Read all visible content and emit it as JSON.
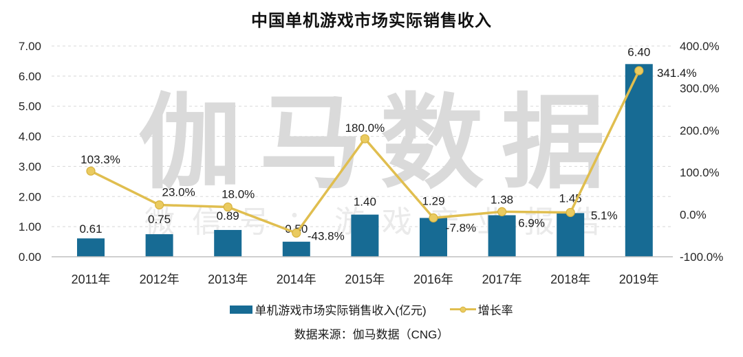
{
  "chart_data": {
    "type": "combo",
    "title": "中国单机游戏市场实际销售收入",
    "categories": [
      "2011年",
      "2012年",
      "2013年",
      "2014年",
      "2015年",
      "2016年",
      "2017年",
      "2018年",
      "2019年"
    ],
    "series": [
      {
        "name": "单机游戏市场实际销售收入(亿元)",
        "type": "bar",
        "axis": "left",
        "color": "#176b94",
        "values": [
          0.61,
          0.75,
          0.89,
          0.5,
          1.4,
          1.29,
          1.38,
          1.45,
          6.4
        ],
        "labels": [
          "0.61",
          "0.75",
          "0.89",
          "0.50",
          "1.40",
          "1.29",
          "1.38",
          "1.45",
          "6.40"
        ]
      },
      {
        "name": "增长率",
        "type": "line",
        "axis": "right",
        "color": "#e0be4f",
        "marker_fill": "#eacb60",
        "marker_stroke": "#d7b23e",
        "values": [
          103.3,
          23.0,
          18.0,
          -43.8,
          180.0,
          -7.8,
          6.9,
          5.1,
          341.4
        ],
        "labels": [
          "103.3%",
          "23.0%",
          "18.0%",
          "-43.8%",
          "180.0%",
          "-7.8%",
          "6.9%",
          "5.1%",
          "341.4%"
        ]
      }
    ],
    "left_axis": {
      "min": 0,
      "max": 7,
      "step": 1,
      "tick_labels": [
        "7.00",
        "6.00",
        "5.00",
        "4.00",
        "3.00",
        "2.00",
        "1.00",
        "0.00"
      ]
    },
    "right_axis": {
      "min": -100,
      "max": 400,
      "step": 100,
      "tick_labels": [
        "400.0%",
        "300.0%",
        "200.0%",
        "100.0%",
        "0.0%",
        "-100.0%"
      ]
    },
    "grid": "horizontal-dashed",
    "grid_color": "#d8d8d8",
    "axis_line_color": "#bfbfbf",
    "text_color": "#1a1a1a",
    "legend_position": "bottom",
    "source": "数据来源：伽马数据（CNG）",
    "watermark": {
      "brand": "伽马数据",
      "wechat": "微信号：游戏产业报告"
    }
  }
}
